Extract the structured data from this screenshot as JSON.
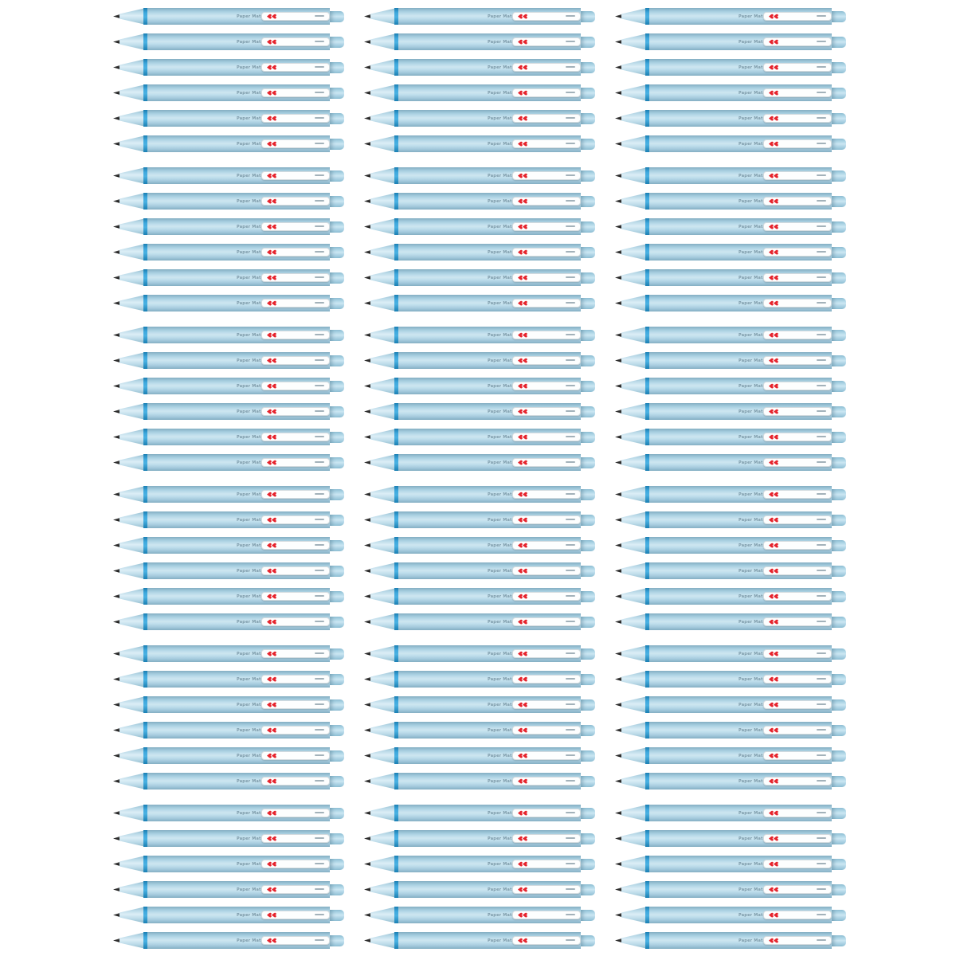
{
  "page": {
    "background_color": "#ffffff",
    "description": "Repeating grid of identical light-blue retractable click pens on a white background"
  },
  "grid": {
    "columns": 3,
    "groups": 6,
    "rows_per_group": 6,
    "total_rows": 36,
    "total_pens": 108
  },
  "pen": {
    "product": "light blue retractable click pen",
    "brand_text": "Paper Mate®",
    "model_text": "gel 0.5",
    "logo_icon": "double-hearts-icon",
    "colors": {
      "barrel_light_blue": "#b7d9e8",
      "barrel_highlight": "#d3e9f3",
      "barrel_shadow": "#86b0c5",
      "accent_ring_blue": "#2e9fd6",
      "clip_white": "#fdfefe",
      "logo_red": "#e6242d",
      "tip_black": "#2e2e2e",
      "barrel_text_gray": "#8aa7b4"
    }
  }
}
